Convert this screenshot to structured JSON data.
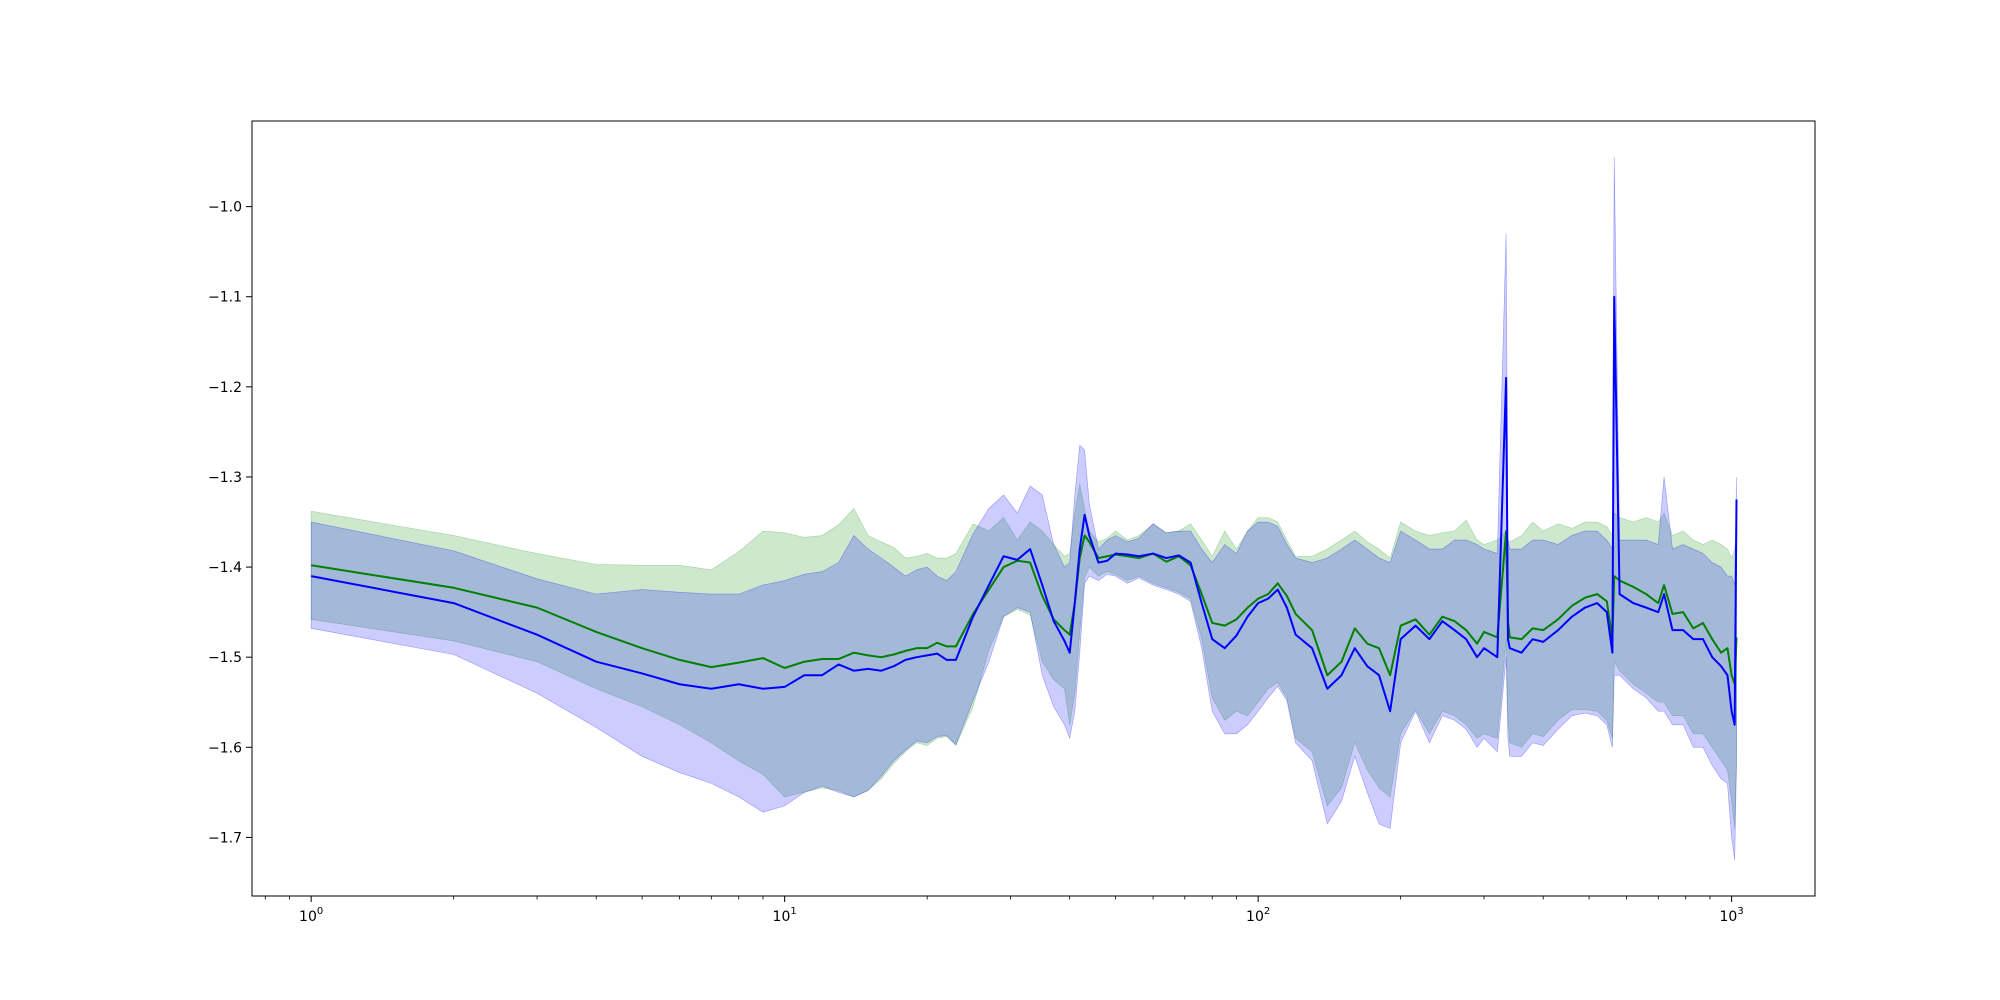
{
  "chart_data": {
    "type": "line",
    "title": "",
    "xlabel": "",
    "ylabel": "",
    "xscale": "log",
    "xlim": [
      0.75,
      1500
    ],
    "ylim": [
      -1.765,
      -0.905
    ],
    "grid": false,
    "x_ticks": [
      {
        "value": 1,
        "base": "10",
        "exp": "0"
      },
      {
        "value": 10,
        "base": "10",
        "exp": "1"
      },
      {
        "value": 100,
        "base": "10",
        "exp": "2"
      },
      {
        "value": 1000,
        "base": "10",
        "exp": "3"
      }
    ],
    "y_ticks": [
      {
        "value": -1.7,
        "label": "−1.7"
      },
      {
        "value": -1.6,
        "label": "−1.6"
      },
      {
        "value": -1.5,
        "label": "−1.5"
      },
      {
        "value": -1.4,
        "label": "−1.4"
      },
      {
        "value": -1.3,
        "label": "−1.3"
      },
      {
        "value": -1.2,
        "label": "−1.2"
      },
      {
        "value": -1.1,
        "label": "−1.1"
      },
      {
        "value": -1.0,
        "label": "−1.0"
      }
    ],
    "series": [
      {
        "color": "#008000",
        "band_color": "#2ca02c",
        "band_opacity": 0.24,
        "x": [
          1,
          2,
          3,
          4,
          5,
          6,
          7,
          8,
          9,
          10,
          11,
          12,
          13,
          14,
          15,
          16,
          17,
          18,
          19,
          20,
          21,
          22,
          23,
          25,
          27,
          29,
          31,
          33,
          35,
          37,
          39,
          40,
          41,
          42,
          43,
          44,
          46,
          48,
          50,
          53,
          56,
          60,
          64,
          68,
          72,
          76,
          80,
          85,
          90,
          95,
          100,
          105,
          110,
          115,
          120,
          130,
          140,
          150,
          160,
          170,
          180,
          190,
          200,
          215,
          230,
          245,
          260,
          275,
          290,
          300,
          320,
          334,
          337,
          340,
          360,
          380,
          400,
          430,
          460,
          490,
          520,
          545,
          560,
          565,
          580,
          620,
          660,
          700,
          720,
          750,
          790,
          830,
          870,
          910,
          950,
          980,
          1000,
          1015,
          1024
        ],
        "y": [
          -1.398,
          -1.423,
          -1.445,
          -1.472,
          -1.49,
          -1.503,
          -1.511,
          -1.506,
          -1.501,
          -1.512,
          -1.505,
          -1.502,
          -1.502,
          -1.495,
          -1.498,
          -1.5,
          -1.497,
          -1.493,
          -1.49,
          -1.49,
          -1.484,
          -1.488,
          -1.488,
          -1.452,
          -1.425,
          -1.4,
          -1.393,
          -1.395,
          -1.432,
          -1.458,
          -1.47,
          -1.475,
          -1.44,
          -1.39,
          -1.365,
          -1.372,
          -1.39,
          -1.388,
          -1.386,
          -1.388,
          -1.39,
          -1.385,
          -1.394,
          -1.388,
          -1.398,
          -1.43,
          -1.462,
          -1.465,
          -1.458,
          -1.445,
          -1.435,
          -1.43,
          -1.418,
          -1.432,
          -1.452,
          -1.47,
          -1.52,
          -1.505,
          -1.468,
          -1.485,
          -1.49,
          -1.52,
          -1.465,
          -1.458,
          -1.475,
          -1.455,
          -1.46,
          -1.47,
          -1.485,
          -1.472,
          -1.478,
          -1.36,
          -1.46,
          -1.478,
          -1.48,
          -1.468,
          -1.47,
          -1.458,
          -1.443,
          -1.434,
          -1.43,
          -1.438,
          -1.48,
          -1.41,
          -1.415,
          -1.422,
          -1.43,
          -1.44,
          -1.42,
          -1.452,
          -1.45,
          -1.468,
          -1.462,
          -1.48,
          -1.495,
          -1.49,
          -1.52,
          -1.53,
          -1.478
        ],
        "upper": [
          -1.338,
          -1.365,
          -1.385,
          -1.397,
          -1.398,
          -1.398,
          -1.403,
          -1.383,
          -1.36,
          -1.362,
          -1.367,
          -1.365,
          -1.353,
          -1.335,
          -1.365,
          -1.372,
          -1.378,
          -1.39,
          -1.388,
          -1.385,
          -1.39,
          -1.39,
          -1.385,
          -1.352,
          -1.36,
          -1.345,
          -1.37,
          -1.35,
          -1.36,
          -1.375,
          -1.388,
          -1.385,
          -1.34,
          -1.308,
          -1.335,
          -1.36,
          -1.372,
          -1.368,
          -1.36,
          -1.37,
          -1.365,
          -1.352,
          -1.362,
          -1.36,
          -1.352,
          -1.37,
          -1.388,
          -1.36,
          -1.38,
          -1.36,
          -1.345,
          -1.345,
          -1.35,
          -1.37,
          -1.388,
          -1.388,
          -1.38,
          -1.37,
          -1.36,
          -1.372,
          -1.38,
          -1.39,
          -1.35,
          -1.36,
          -1.365,
          -1.362,
          -1.36,
          -1.348,
          -1.37,
          -1.375,
          -1.37,
          -1.36,
          -1.37,
          -1.372,
          -1.365,
          -1.35,
          -1.36,
          -1.352,
          -1.357,
          -1.35,
          -1.35,
          -1.355,
          -1.365,
          -1.34,
          -1.345,
          -1.35,
          -1.345,
          -1.35,
          -1.34,
          -1.365,
          -1.36,
          -1.37,
          -1.375,
          -1.37,
          -1.375,
          -1.38,
          -1.39,
          -1.38,
          -1.36
        ],
        "lower": [
          -1.458,
          -1.482,
          -1.505,
          -1.535,
          -1.555,
          -1.575,
          -1.595,
          -1.615,
          -1.63,
          -1.655,
          -1.65,
          -1.645,
          -1.648,
          -1.655,
          -1.648,
          -1.635,
          -1.618,
          -1.605,
          -1.595,
          -1.598,
          -1.59,
          -1.588,
          -1.598,
          -1.555,
          -1.492,
          -1.455,
          -1.447,
          -1.453,
          -1.505,
          -1.525,
          -1.535,
          -1.575,
          -1.54,
          -1.472,
          -1.412,
          -1.4,
          -1.41,
          -1.405,
          -1.408,
          -1.415,
          -1.41,
          -1.418,
          -1.423,
          -1.428,
          -1.435,
          -1.48,
          -1.545,
          -1.57,
          -1.56,
          -1.565,
          -1.55,
          -1.535,
          -1.528,
          -1.545,
          -1.59,
          -1.605,
          -1.665,
          -1.645,
          -1.595,
          -1.625,
          -1.645,
          -1.655,
          -1.585,
          -1.558,
          -1.585,
          -1.56,
          -1.565,
          -1.575,
          -1.59,
          -1.585,
          -1.59,
          -1.48,
          -1.57,
          -1.595,
          -1.6,
          -1.585,
          -1.588,
          -1.57,
          -1.558,
          -1.558,
          -1.56,
          -1.57,
          -1.59,
          -1.505,
          -1.515,
          -1.53,
          -1.54,
          -1.55,
          -1.55,
          -1.565,
          -1.565,
          -1.585,
          -1.585,
          -1.6,
          -1.615,
          -1.625,
          -1.66,
          -1.69,
          -1.61
        ]
      },
      {
        "color": "#0000ff",
        "band_color": "#0000ff",
        "band_opacity": 0.2,
        "x": [
          1,
          2,
          3,
          4,
          5,
          6,
          7,
          8,
          9,
          10,
          11,
          12,
          13,
          14,
          15,
          16,
          17,
          18,
          19,
          20,
          21,
          22,
          23,
          25,
          27,
          29,
          31,
          33,
          35,
          37,
          39,
          40,
          41,
          42,
          43,
          44,
          46,
          48,
          50,
          53,
          56,
          60,
          64,
          68,
          72,
          76,
          80,
          85,
          90,
          95,
          100,
          105,
          110,
          115,
          120,
          130,
          140,
          150,
          160,
          170,
          180,
          190,
          200,
          215,
          230,
          245,
          260,
          275,
          290,
          300,
          320,
          334,
          337,
          340,
          360,
          380,
          400,
          430,
          460,
          490,
          520,
          545,
          560,
          565,
          580,
          620,
          660,
          700,
          720,
          750,
          790,
          830,
          870,
          910,
          950,
          980,
          1000,
          1015,
          1024
        ],
        "y": [
          -1.41,
          -1.44,
          -1.475,
          -1.505,
          -1.518,
          -1.53,
          -1.535,
          -1.53,
          -1.535,
          -1.533,
          -1.52,
          -1.52,
          -1.508,
          -1.515,
          -1.513,
          -1.515,
          -1.51,
          -1.503,
          -1.5,
          -1.498,
          -1.496,
          -1.503,
          -1.503,
          -1.455,
          -1.42,
          -1.388,
          -1.392,
          -1.38,
          -1.42,
          -1.46,
          -1.482,
          -1.495,
          -1.44,
          -1.38,
          -1.342,
          -1.365,
          -1.395,
          -1.393,
          -1.385,
          -1.386,
          -1.388,
          -1.385,
          -1.39,
          -1.387,
          -1.395,
          -1.44,
          -1.48,
          -1.49,
          -1.476,
          -1.455,
          -1.44,
          -1.435,
          -1.425,
          -1.445,
          -1.475,
          -1.49,
          -1.535,
          -1.52,
          -1.49,
          -1.51,
          -1.52,
          -1.56,
          -1.48,
          -1.465,
          -1.48,
          -1.46,
          -1.47,
          -1.48,
          -1.5,
          -1.49,
          -1.5,
          -1.19,
          -1.48,
          -1.49,
          -1.495,
          -1.48,
          -1.483,
          -1.47,
          -1.455,
          -1.445,
          -1.44,
          -1.45,
          -1.495,
          -1.1,
          -1.43,
          -1.44,
          -1.445,
          -1.45,
          -1.43,
          -1.47,
          -1.47,
          -1.48,
          -1.48,
          -1.5,
          -1.51,
          -1.52,
          -1.56,
          -1.575,
          -1.325
        ],
        "upper": [
          -1.35,
          -1.382,
          -1.413,
          -1.43,
          -1.425,
          -1.428,
          -1.43,
          -1.43,
          -1.42,
          -1.415,
          -1.408,
          -1.405,
          -1.395,
          -1.365,
          -1.38,
          -1.39,
          -1.4,
          -1.41,
          -1.403,
          -1.4,
          -1.41,
          -1.415,
          -1.405,
          -1.363,
          -1.335,
          -1.32,
          -1.34,
          -1.31,
          -1.32,
          -1.375,
          -1.4,
          -1.395,
          -1.32,
          -1.265,
          -1.27,
          -1.33,
          -1.38,
          -1.37,
          -1.365,
          -1.372,
          -1.368,
          -1.352,
          -1.362,
          -1.36,
          -1.36,
          -1.38,
          -1.395,
          -1.375,
          -1.385,
          -1.36,
          -1.35,
          -1.35,
          -1.355,
          -1.375,
          -1.39,
          -1.395,
          -1.39,
          -1.38,
          -1.37,
          -1.38,
          -1.39,
          -1.395,
          -1.36,
          -1.37,
          -1.38,
          -1.38,
          -1.37,
          -1.37,
          -1.375,
          -1.38,
          -1.385,
          -1.03,
          -1.37,
          -1.38,
          -1.38,
          -1.37,
          -1.37,
          -1.375,
          -1.365,
          -1.36,
          -1.36,
          -1.37,
          -1.38,
          -0.945,
          -1.37,
          -1.37,
          -1.37,
          -1.375,
          -1.3,
          -1.38,
          -1.375,
          -1.38,
          -1.385,
          -1.395,
          -1.4,
          -1.41,
          -1.41,
          -1.42,
          -1.3
        ],
        "lower": [
          -1.468,
          -1.497,
          -1.54,
          -1.578,
          -1.61,
          -1.628,
          -1.64,
          -1.655,
          -1.672,
          -1.665,
          -1.65,
          -1.643,
          -1.65,
          -1.655,
          -1.648,
          -1.632,
          -1.615,
          -1.603,
          -1.593,
          -1.595,
          -1.588,
          -1.587,
          -1.597,
          -1.548,
          -1.505,
          -1.455,
          -1.445,
          -1.45,
          -1.52,
          -1.555,
          -1.575,
          -1.59,
          -1.56,
          -1.495,
          -1.418,
          -1.41,
          -1.415,
          -1.408,
          -1.41,
          -1.418,
          -1.412,
          -1.42,
          -1.425,
          -1.43,
          -1.438,
          -1.49,
          -1.56,
          -1.585,
          -1.585,
          -1.575,
          -1.56,
          -1.545,
          -1.532,
          -1.548,
          -1.595,
          -1.615,
          -1.685,
          -1.66,
          -1.61,
          -1.65,
          -1.685,
          -1.69,
          -1.595,
          -1.56,
          -1.595,
          -1.565,
          -1.57,
          -1.58,
          -1.6,
          -1.59,
          -1.605,
          -1.5,
          -1.59,
          -1.61,
          -1.61,
          -1.595,
          -1.598,
          -1.58,
          -1.565,
          -1.562,
          -1.565,
          -1.575,
          -1.6,
          -1.52,
          -1.52,
          -1.535,
          -1.545,
          -1.56,
          -1.56,
          -1.575,
          -1.575,
          -1.6,
          -1.6,
          -1.62,
          -1.635,
          -1.64,
          -1.7,
          -1.725,
          -1.62
        ]
      }
    ]
  }
}
